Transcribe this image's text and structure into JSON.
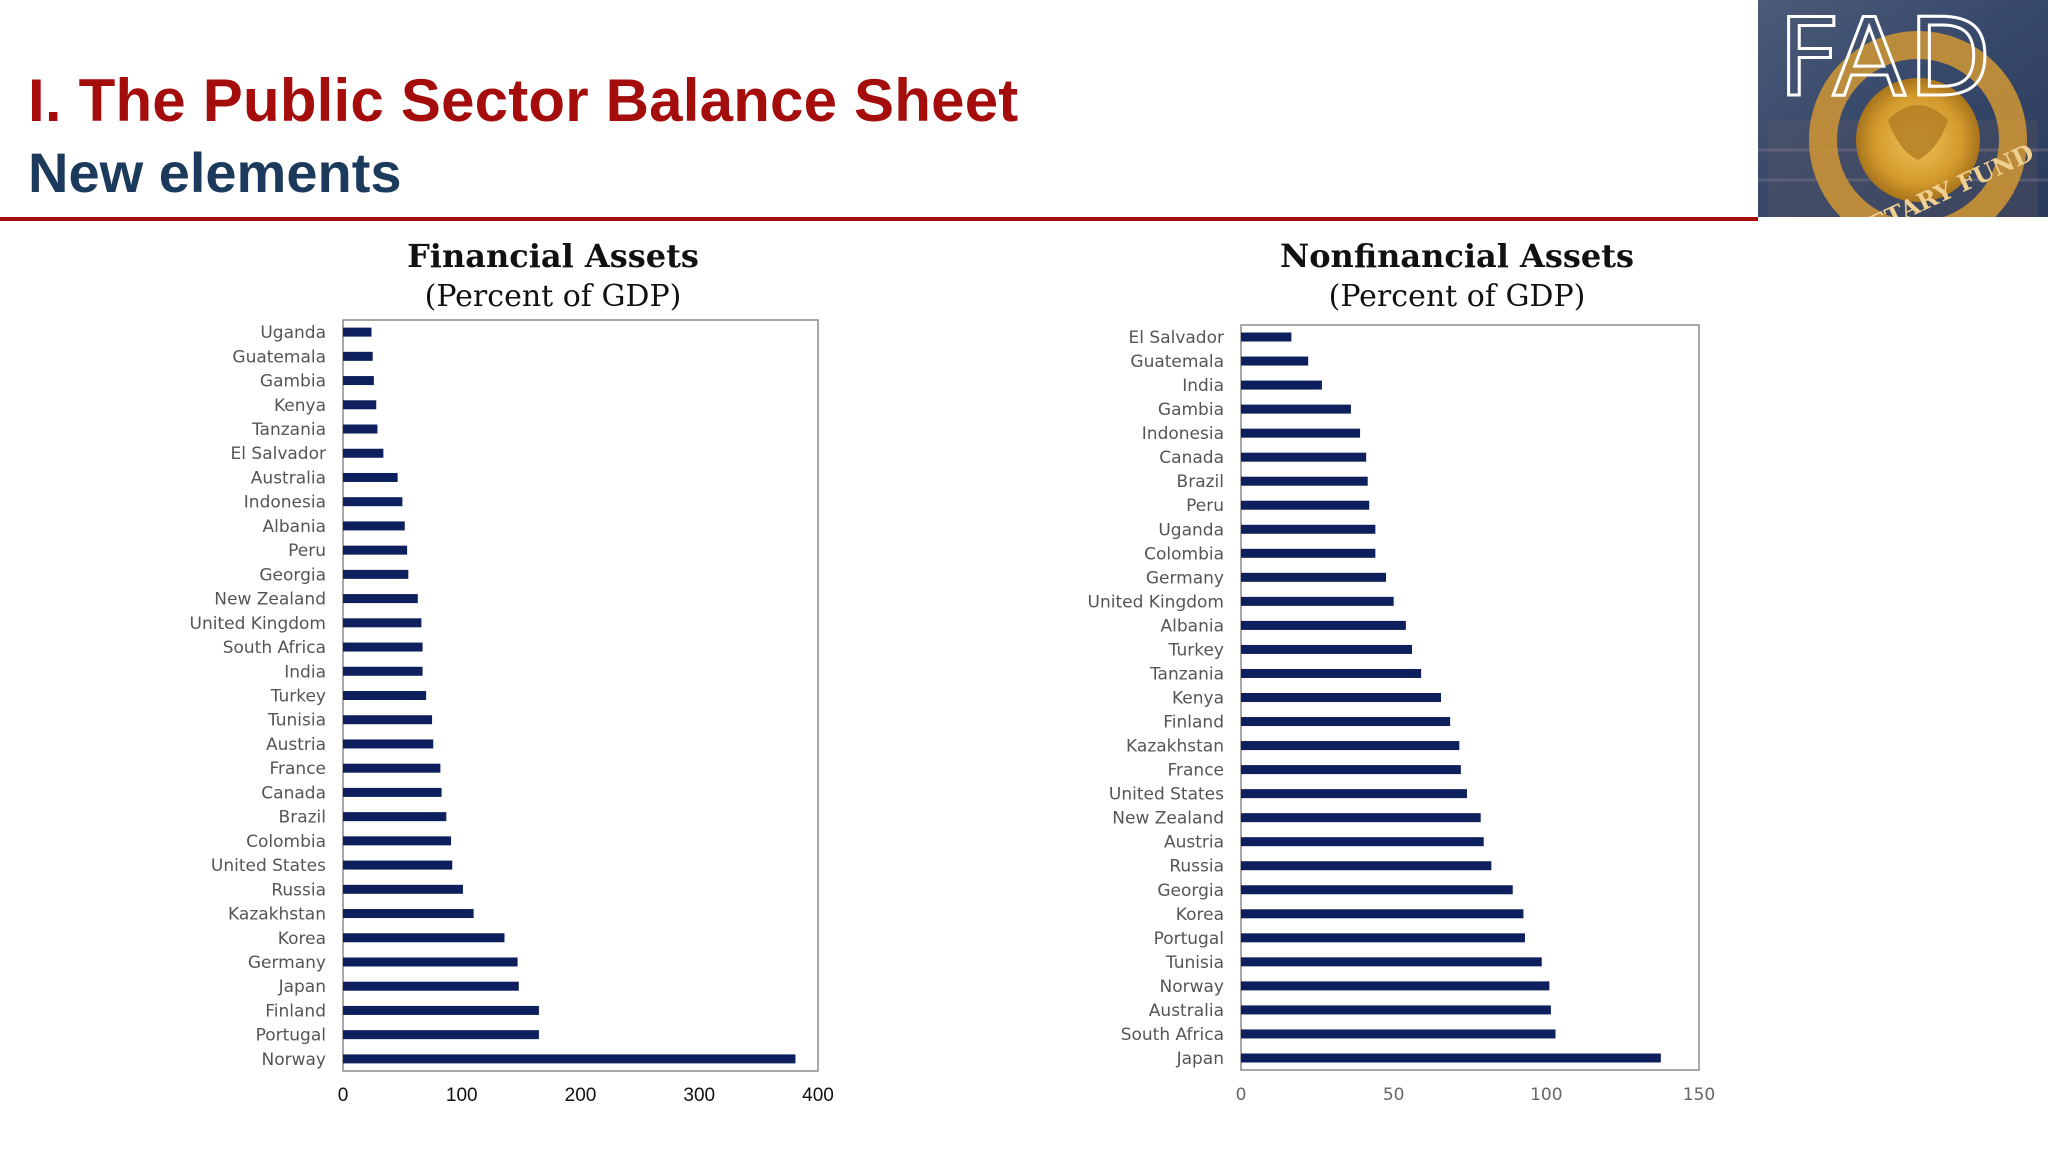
{
  "header": {
    "title": "I. The Public Sector Balance Sheet",
    "subtitle": "New elements",
    "logo_text": "FAD",
    "logo_ring_text": "MONETARY FUND"
  },
  "colors": {
    "title": "#a50c0c",
    "subtitle": "#1c3a5c",
    "bar": "#0d1f5c",
    "rule": "#a50c0c"
  },
  "chart_data": [
    {
      "type": "bar",
      "orientation": "horizontal",
      "title": "Financial Assets",
      "subtitle": "(Percent of GDP)",
      "xlim": [
        0,
        400
      ],
      "xticks": [
        0,
        100,
        200,
        300,
        400
      ],
      "grid": false,
      "categories": [
        "Uganda",
        "Guatemala",
        "Gambia",
        "Kenya",
        "Tanzania",
        "El Salvador",
        "Australia",
        "Indonesia",
        "Albania",
        "Peru",
        "Georgia",
        "New Zealand",
        "United Kingdom",
        "South Africa",
        "India",
        "Turkey",
        "Tunisia",
        "Austria",
        "France",
        "Canada",
        "Brazil",
        "Colombia",
        "United States",
        "Russia",
        "Kazakhstan",
        "Korea",
        "Germany",
        "Japan",
        "Finland",
        "Portugal",
        "Norway"
      ],
      "values": [
        24,
        25,
        26,
        28,
        29,
        34,
        46,
        50,
        52,
        54,
        55,
        63,
        66,
        67,
        67,
        70,
        75,
        76,
        82,
        83,
        87,
        91,
        92,
        101,
        110,
        136,
        147,
        148,
        165,
        165,
        381
      ]
    },
    {
      "type": "bar",
      "orientation": "horizontal",
      "title": "Nonfinancial Assets",
      "subtitle": "(Percent of GDP)",
      "xlim": [
        0,
        150
      ],
      "xticks": [
        0,
        50,
        100,
        150
      ],
      "grid": false,
      "categories": [
        "El Salvador",
        "Guatemala",
        "India",
        "Gambia",
        "Indonesia",
        "Canada",
        "Brazil",
        "Peru",
        "Uganda",
        "Colombia",
        "Germany",
        "United Kingdom",
        "Albania",
        "Turkey",
        "Tanzania",
        "Kenya",
        "Finland",
        "Kazakhstan",
        "France",
        "United States",
        "New Zealand",
        "Austria",
        "Russia",
        "Georgia",
        "Korea",
        "Portugal",
        "Tunisia",
        "Norway",
        "Australia",
        "South Africa",
        "Japan"
      ],
      "values": [
        16.5,
        22,
        26.5,
        36,
        39,
        41,
        41.5,
        42,
        44,
        44,
        47.5,
        50,
        54,
        56,
        59,
        65.5,
        68.5,
        71.5,
        72,
        74,
        78.5,
        79.5,
        82,
        89,
        92.5,
        93,
        98.5,
        101,
        101.5,
        103,
        137.5
      ]
    }
  ]
}
